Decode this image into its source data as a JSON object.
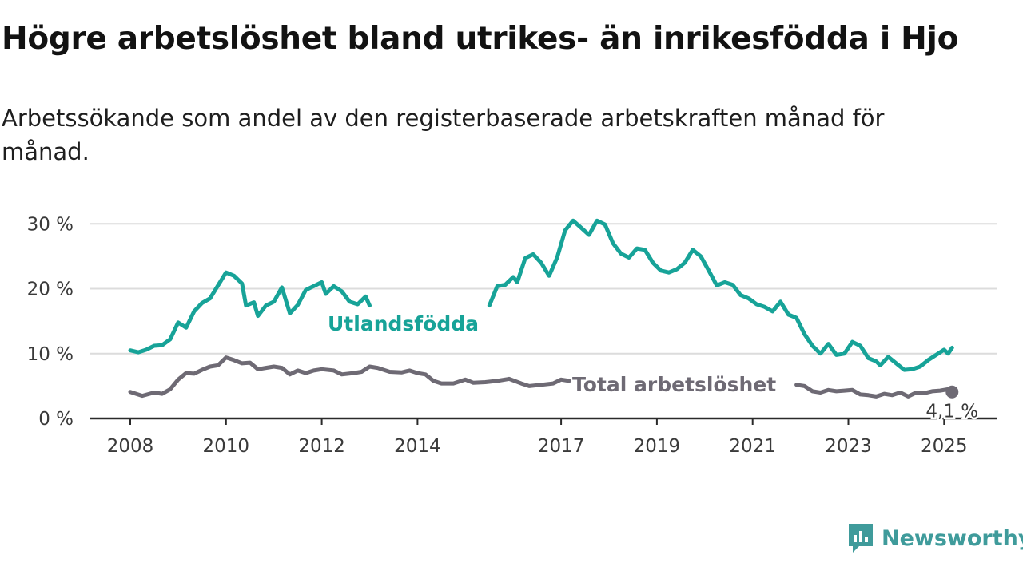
{
  "title": "Högre arbetslöshet bland utrikes- än inrikesfödda i Hjo",
  "subtitle": "Arbetssökande som andel av den registerbaserade arbetskraften månad för månad.",
  "brand": {
    "name": "Newsworthy",
    "logo_icon": "newsworthy-chart-icon"
  },
  "colors": {
    "utrikes": "#17a398",
    "total": "#6e6a74",
    "grid": "#dcdcdc",
    "axis": "#2a2a2a"
  },
  "chart_data": {
    "type": "line",
    "x_range": [
      "2008-01",
      "2025-12"
    ],
    "ylim": [
      0,
      32
    ],
    "y_ticks": [
      0,
      10,
      20,
      30
    ],
    "y_tick_labels": [
      "0 %",
      "10 %",
      "20 %",
      "30 %"
    ],
    "x_tick_labels": [
      "2008",
      "2010",
      "2012",
      "2014",
      "2017",
      "2019",
      "2021",
      "2023",
      "2025"
    ],
    "x_tick_dates": [
      "2008-01",
      "2010-01",
      "2012-01",
      "2014-01",
      "2017-01",
      "2019-01",
      "2021-01",
      "2023-01",
      "2025-01"
    ],
    "grid": true,
    "series": [
      {
        "name": "Utlandsfödda",
        "color": "#17a398",
        "points": [
          [
            "2008-01",
            10.5
          ],
          [
            "2008-03",
            10.2
          ],
          [
            "2008-05",
            10.6
          ],
          [
            "2008-07",
            11.2
          ],
          [
            "2008-09",
            11.3
          ],
          [
            "2008-11",
            12.2
          ],
          [
            "2009-01",
            14.8
          ],
          [
            "2009-03",
            14.0
          ],
          [
            "2009-05",
            16.5
          ],
          [
            "2009-07",
            17.8
          ],
          [
            "2009-09",
            18.5
          ],
          [
            "2009-11",
            20.5
          ],
          [
            "2010-01",
            22.5
          ],
          [
            "2010-03",
            22.0
          ],
          [
            "2010-05",
            20.8
          ],
          [
            "2010-06",
            17.4
          ],
          [
            "2010-08",
            17.9
          ],
          [
            "2010-09",
            15.8
          ],
          [
            "2010-11",
            17.4
          ],
          [
            "2011-01",
            18.0
          ],
          [
            "2011-03",
            20.2
          ],
          [
            "2011-05",
            16.2
          ],
          [
            "2011-07",
            17.5
          ],
          [
            "2011-09",
            19.8
          ],
          [
            "2011-11",
            20.4
          ],
          [
            "2012-01",
            21.0
          ],
          [
            "2012-02",
            19.2
          ],
          [
            "2012-04",
            20.4
          ],
          [
            "2012-06",
            19.6
          ],
          [
            "2012-08",
            18.0
          ],
          [
            "2012-10",
            17.6
          ],
          [
            "2012-12",
            18.8
          ],
          [
            "2013-01",
            17.4
          ],
          null,
          [
            "2015-07",
            17.4
          ],
          [
            "2015-09",
            20.4
          ],
          [
            "2015-11",
            20.6
          ],
          [
            "2016-01",
            21.8
          ],
          [
            "2016-02",
            21.0
          ],
          [
            "2016-04",
            24.7
          ],
          [
            "2016-06",
            25.3
          ],
          [
            "2016-08",
            24.0
          ],
          [
            "2016-10",
            22.0
          ],
          [
            "2016-12",
            24.8
          ],
          [
            "2017-02",
            29.0
          ],
          [
            "2017-04",
            30.5
          ],
          [
            "2017-06",
            29.4
          ],
          [
            "2017-08",
            28.3
          ],
          [
            "2017-10",
            30.5
          ],
          [
            "2017-12",
            29.9
          ],
          [
            "2018-02",
            27.0
          ],
          [
            "2018-04",
            25.4
          ],
          [
            "2018-06",
            24.8
          ],
          [
            "2018-08",
            26.2
          ],
          [
            "2018-10",
            26.0
          ],
          [
            "2018-12",
            24.0
          ],
          [
            "2019-02",
            22.8
          ],
          [
            "2019-04",
            22.5
          ],
          [
            "2019-06",
            23.0
          ],
          [
            "2019-08",
            24.0
          ],
          [
            "2019-10",
            26.0
          ],
          [
            "2019-12",
            25.0
          ],
          [
            "2020-02",
            22.8
          ],
          [
            "2020-04",
            20.5
          ],
          [
            "2020-06",
            21.0
          ],
          [
            "2020-08",
            20.6
          ],
          [
            "2020-10",
            19.0
          ],
          [
            "2020-12",
            18.5
          ],
          [
            "2021-02",
            17.6
          ],
          [
            "2021-04",
            17.2
          ],
          [
            "2021-06",
            16.5
          ],
          [
            "2021-08",
            18.0
          ],
          [
            "2021-10",
            16.0
          ],
          [
            "2021-12",
            15.5
          ],
          [
            "2022-02",
            13.0
          ],
          [
            "2022-04",
            11.2
          ],
          [
            "2022-06",
            10.0
          ],
          [
            "2022-08",
            11.5
          ],
          [
            "2022-10",
            9.8
          ],
          [
            "2022-12",
            10.0
          ],
          [
            "2023-02",
            11.8
          ],
          [
            "2023-04",
            11.2
          ],
          [
            "2023-06",
            9.3
          ],
          [
            "2023-08",
            8.8
          ],
          [
            "2023-09",
            8.2
          ],
          [
            "2023-11",
            9.5
          ],
          [
            "2024-01",
            8.5
          ],
          [
            "2024-03",
            7.5
          ],
          [
            "2024-05",
            7.6
          ],
          [
            "2024-07",
            8.0
          ],
          [
            "2024-09",
            9.0
          ],
          [
            "2024-11",
            9.8
          ],
          [
            "2025-01",
            10.6
          ],
          [
            "2025-02",
            10.0
          ],
          [
            "2025-03",
            10.9
          ]
        ]
      },
      {
        "name": "Total arbetslöshet",
        "color": "#6e6a74",
        "points": [
          [
            "2008-01",
            4.1
          ],
          [
            "2008-04",
            3.5
          ],
          [
            "2008-07",
            4.0
          ],
          [
            "2008-09",
            3.8
          ],
          [
            "2008-11",
            4.5
          ],
          [
            "2009-01",
            6.0
          ],
          [
            "2009-03",
            7.0
          ],
          [
            "2009-05",
            6.9
          ],
          [
            "2009-07",
            7.5
          ],
          [
            "2009-09",
            8.0
          ],
          [
            "2009-11",
            8.2
          ],
          [
            "2010-01",
            9.4
          ],
          [
            "2010-03",
            9.0
          ],
          [
            "2010-05",
            8.5
          ],
          [
            "2010-07",
            8.6
          ],
          [
            "2010-09",
            7.6
          ],
          [
            "2010-11",
            7.8
          ],
          [
            "2011-01",
            8.0
          ],
          [
            "2011-03",
            7.8
          ],
          [
            "2011-05",
            6.8
          ],
          [
            "2011-07",
            7.4
          ],
          [
            "2011-09",
            7.0
          ],
          [
            "2011-11",
            7.4
          ],
          [
            "2012-01",
            7.6
          ],
          [
            "2012-04",
            7.4
          ],
          [
            "2012-06",
            6.8
          ],
          [
            "2012-09",
            7.0
          ],
          [
            "2012-11",
            7.2
          ],
          [
            "2013-01",
            8.0
          ],
          [
            "2013-03",
            7.8
          ],
          [
            "2013-06",
            7.2
          ],
          [
            "2013-09",
            7.1
          ],
          [
            "2013-11",
            7.4
          ],
          [
            "2014-01",
            7.0
          ],
          [
            "2014-03",
            6.8
          ],
          [
            "2014-05",
            5.8
          ],
          [
            "2014-07",
            5.4
          ],
          [
            "2014-10",
            5.4
          ],
          [
            "2015-01",
            6.0
          ],
          [
            "2015-03",
            5.5
          ],
          [
            "2015-06",
            5.6
          ],
          [
            "2015-09",
            5.8
          ],
          [
            "2015-12",
            6.1
          ],
          [
            "2016-03",
            5.4
          ],
          [
            "2016-05",
            5.0
          ],
          [
            "2016-08",
            5.2
          ],
          [
            "2016-11",
            5.4
          ],
          [
            "2017-01",
            6.0
          ],
          [
            "2017-03",
            5.8
          ],
          null,
          [
            "2021-12",
            5.2
          ],
          [
            "2022-02",
            5.0
          ],
          [
            "2022-04",
            4.2
          ],
          [
            "2022-06",
            4.0
          ],
          [
            "2022-08",
            4.4
          ],
          [
            "2022-10",
            4.2
          ],
          [
            "2022-12",
            4.3
          ],
          [
            "2023-02",
            4.4
          ],
          [
            "2023-04",
            3.7
          ],
          [
            "2023-06",
            3.6
          ],
          [
            "2023-08",
            3.4
          ],
          [
            "2023-10",
            3.8
          ],
          [
            "2023-12",
            3.6
          ],
          [
            "2024-02",
            4.0
          ],
          [
            "2024-04",
            3.4
          ],
          [
            "2024-06",
            4.0
          ],
          [
            "2024-08",
            3.9
          ],
          [
            "2024-10",
            4.2
          ],
          [
            "2024-12",
            4.3
          ],
          [
            "2025-02",
            4.5
          ],
          [
            "2025-03",
            4.1
          ]
        ]
      }
    ],
    "annotations": [
      {
        "text": "Utlandsfödda",
        "series": "Utlandsfödda"
      },
      {
        "text": "Total arbetslöshet",
        "series": "Total arbetslöshet"
      },
      {
        "text": "4,1 %",
        "series": "Total arbetslöshet",
        "at": "2025-03"
      }
    ]
  }
}
